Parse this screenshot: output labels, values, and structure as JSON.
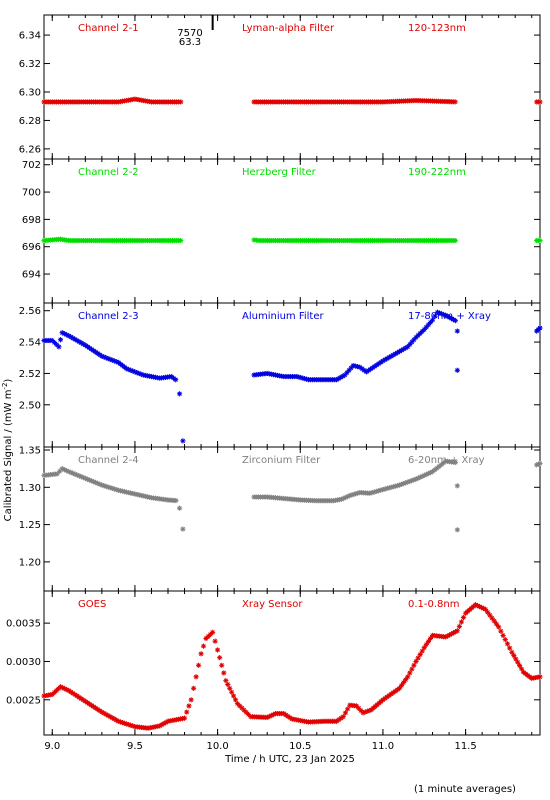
{
  "colors": {
    "red": "#e00000",
    "green": "#00dd00",
    "blue": "#0000e0",
    "grey": "#808080",
    "axis": "#000000"
  },
  "chart_data": [
    {
      "type": "scatter",
      "xlim": [
        8.95,
        11.95
      ],
      "ylim": [
        6.255,
        6.352
      ],
      "yticks": [
        "6.26",
        "6.28",
        "6.30",
        "6.32",
        "6.34"
      ],
      "ytick_values": [
        6.26,
        6.28,
        6.3,
        6.32,
        6.34
      ],
      "texts": [
        "Channel 2-1",
        "Lyman-alpha Filter",
        "120-123nm"
      ],
      "color": "red",
      "gaps": [
        [
          9.79,
          10.22
        ],
        [
          11.45,
          11.93
        ]
      ],
      "points": [
        [
          8.95,
          6.293
        ],
        [
          9.2,
          6.293
        ],
        [
          9.4,
          6.293
        ],
        [
          9.5,
          6.295
        ],
        [
          9.6,
          6.293
        ],
        [
          9.79,
          6.293
        ],
        [
          10.22,
          6.293
        ],
        [
          10.5,
          6.293
        ],
        [
          11.0,
          6.293
        ],
        [
          11.2,
          6.294
        ],
        [
          11.45,
          6.293
        ],
        [
          11.93,
          6.293
        ],
        [
          11.95,
          6.293
        ]
      ],
      "extras": []
    },
    {
      "type": "scatter",
      "xlim": [
        8.95,
        11.95
      ],
      "ylim": [
        692.1,
        702.2
      ],
      "yticks": [
        "694",
        "696",
        "698",
        "700",
        "702"
      ],
      "ytick_values": [
        694,
        696,
        698,
        700,
        702
      ],
      "texts": [
        "Channel 2-2",
        "Herzberg Filter",
        "190-222nm"
      ],
      "color": "green",
      "gaps": [
        [
          9.79,
          10.22
        ],
        [
          11.45,
          11.93
        ]
      ],
      "points": [
        [
          8.95,
          696.45
        ],
        [
          9.05,
          696.55
        ],
        [
          9.1,
          696.45
        ],
        [
          9.5,
          696.45
        ],
        [
          9.79,
          696.45
        ],
        [
          10.22,
          696.5
        ],
        [
          10.25,
          696.45
        ],
        [
          10.6,
          696.45
        ],
        [
          11.0,
          696.45
        ],
        [
          11.45,
          696.45
        ],
        [
          11.93,
          696.45
        ],
        [
          11.95,
          696.45
        ]
      ],
      "extras": []
    },
    {
      "type": "scatter",
      "xlim": [
        8.95,
        11.95
      ],
      "ylim": [
        2.475,
        2.563
      ],
      "yticks": [
        "2.50",
        "2.52",
        "2.54",
        "2.56"
      ],
      "ytick_values": [
        2.5,
        2.52,
        2.54,
        2.56
      ],
      "texts": [
        "Channel 2-3",
        "Aluminium Filter",
        "17-80nm + Xray"
      ],
      "color": "blue",
      "gaps": [
        [
          9.79,
          10.22
        ],
        [
          11.45,
          11.93
        ]
      ],
      "points": [
        [
          8.95,
          2.541
        ],
        [
          9.0,
          2.541
        ],
        [
          9.04,
          2.537
        ],
        [
          9.06,
          2.546
        ],
        [
          9.1,
          2.544
        ],
        [
          9.2,
          2.538
        ],
        [
          9.3,
          2.531
        ],
        [
          9.4,
          2.527
        ],
        [
          9.45,
          2.523
        ],
        [
          9.55,
          2.519
        ],
        [
          9.65,
          2.517
        ],
        [
          9.72,
          2.518
        ],
        [
          9.76,
          2.515
        ],
        [
          10.22,
          2.519
        ],
        [
          10.3,
          2.52
        ],
        [
          10.4,
          2.518
        ],
        [
          10.48,
          2.518
        ],
        [
          10.55,
          2.516
        ],
        [
          10.65,
          2.516
        ],
        [
          10.72,
          2.516
        ],
        [
          10.77,
          2.519
        ],
        [
          10.82,
          2.525
        ],
        [
          10.86,
          2.524
        ],
        [
          10.9,
          2.521
        ],
        [
          11.0,
          2.528
        ],
        [
          11.05,
          2.531
        ],
        [
          11.1,
          2.534
        ],
        [
          11.15,
          2.537
        ],
        [
          11.2,
          2.543
        ],
        [
          11.25,
          2.548
        ],
        [
          11.3,
          2.554
        ],
        [
          11.33,
          2.559
        ],
        [
          11.38,
          2.557
        ],
        [
          11.45,
          2.553
        ],
        [
          11.93,
          2.547
        ],
        [
          11.95,
          2.549
        ]
      ],
      "extras": [
        [
          9.77,
          2.507
        ],
        [
          9.79,
          2.477
        ],
        [
          11.45,
          2.547
        ],
        [
          11.45,
          2.522
        ]
      ]
    },
    {
      "type": "scatter",
      "xlim": [
        8.95,
        11.95
      ],
      "ylim": [
        1.165,
        1.35
      ],
      "yticks": [
        "1.20",
        "1.25",
        "1.30",
        "1.35"
      ],
      "ytick_values": [
        1.2,
        1.25,
        1.3,
        1.35
      ],
      "texts": [
        "Channel 2-4",
        "Zirconium Filter",
        "6-20nm + Xray"
      ],
      "color": "grey",
      "gaps": [
        [
          9.79,
          10.22
        ],
        [
          11.45,
          11.93
        ]
      ],
      "points": [
        [
          8.95,
          1.316
        ],
        [
          9.03,
          1.318
        ],
        [
          9.06,
          1.325
        ],
        [
          9.1,
          1.321
        ],
        [
          9.2,
          1.312
        ],
        [
          9.3,
          1.303
        ],
        [
          9.4,
          1.296
        ],
        [
          9.5,
          1.291
        ],
        [
          9.6,
          1.286
        ],
        [
          9.7,
          1.283
        ],
        [
          9.76,
          1.282
        ],
        [
          10.22,
          1.287
        ],
        [
          10.3,
          1.287
        ],
        [
          10.4,
          1.285
        ],
        [
          10.5,
          1.283
        ],
        [
          10.6,
          1.282
        ],
        [
          10.7,
          1.282
        ],
        [
          10.75,
          1.284
        ],
        [
          10.8,
          1.289
        ],
        [
          10.86,
          1.293
        ],
        [
          10.92,
          1.292
        ],
        [
          11.0,
          1.297
        ],
        [
          11.1,
          1.303
        ],
        [
          11.2,
          1.311
        ],
        [
          11.3,
          1.321
        ],
        [
          11.38,
          1.335
        ],
        [
          11.45,
          1.333
        ],
        [
          11.93,
          1.33
        ],
        [
          11.95,
          1.332
        ]
      ],
      "extras": [
        [
          9.77,
          1.272
        ],
        [
          9.79,
          1.244
        ],
        [
          11.45,
          1.302
        ],
        [
          11.45,
          1.243
        ]
      ]
    },
    {
      "type": "scatter",
      "xlim": [
        8.95,
        11.95
      ],
      "ylim": [
        0.00208,
        0.00388
      ],
      "yticks": [
        "0.0025",
        "0.0030",
        "0.0035"
      ],
      "ytick_values": [
        0.0025,
        0.003,
        0.0035
      ],
      "texts": [
        "GOES",
        "Xray Sensor",
        "0.1-0.8nm"
      ],
      "color": "red",
      "gaps": [],
      "points": [
        [
          8.95,
          0.00255
        ],
        [
          9.0,
          0.00257
        ],
        [
          9.05,
          0.00267
        ],
        [
          9.1,
          0.00262
        ],
        [
          9.2,
          0.00248
        ],
        [
          9.3,
          0.00234
        ],
        [
          9.4,
          0.00222
        ],
        [
          9.5,
          0.00215
        ],
        [
          9.58,
          0.00213
        ],
        [
          9.65,
          0.00216
        ],
        [
          9.7,
          0.00222
        ],
        [
          9.75,
          0.00224
        ],
        [
          9.8,
          0.00226
        ],
        [
          9.84,
          0.0025
        ],
        [
          9.87,
          0.0028
        ],
        [
          9.9,
          0.0031
        ],
        [
          9.93,
          0.0033
        ],
        [
          9.97,
          0.00338
        ],
        [
          10.0,
          0.00315
        ],
        [
          10.05,
          0.00275
        ],
        [
          10.12,
          0.00245
        ],
        [
          10.2,
          0.00228
        ],
        [
          10.3,
          0.00227
        ],
        [
          10.35,
          0.00232
        ],
        [
          10.4,
          0.00232
        ],
        [
          10.45,
          0.00225
        ],
        [
          10.55,
          0.00221
        ],
        [
          10.65,
          0.00222
        ],
        [
          10.72,
          0.00222
        ],
        [
          10.76,
          0.00228
        ],
        [
          10.8,
          0.00243
        ],
        [
          10.84,
          0.00242
        ],
        [
          10.88,
          0.00233
        ],
        [
          10.93,
          0.00237
        ],
        [
          11.0,
          0.0025
        ],
        [
          11.1,
          0.00265
        ],
        [
          11.15,
          0.0028
        ],
        [
          11.2,
          0.003
        ],
        [
          11.25,
          0.00318
        ],
        [
          11.3,
          0.00334
        ],
        [
          11.38,
          0.00332
        ],
        [
          11.45,
          0.0034
        ],
        [
          11.5,
          0.00363
        ],
        [
          11.56,
          0.00374
        ],
        [
          11.62,
          0.00368
        ],
        [
          11.7,
          0.00345
        ],
        [
          11.78,
          0.00312
        ],
        [
          11.85,
          0.00286
        ],
        [
          11.9,
          0.00278
        ],
        [
          11.95,
          0.0028
        ]
      ],
      "extras": []
    }
  ],
  "x_axis": {
    "label": "Time / h UTC, 23 Jan 2025",
    "tick_values": [
      9.0,
      9.5,
      10.0,
      10.5,
      11.0,
      11.5
    ],
    "tick_labels": [
      "9.0",
      "9.5",
      "10.0",
      "10.5",
      "11.0",
      "11.5"
    ]
  },
  "y_axis_label": "Calibrated Signal / (mW m",
  "y_axis_label_sup": "-2",
  "y_axis_label_end": ")",
  "marker": {
    "x": 9.97,
    "label_top": "7570",
    "label_bottom": "63.3"
  },
  "footnote": "(1 minute averages)"
}
